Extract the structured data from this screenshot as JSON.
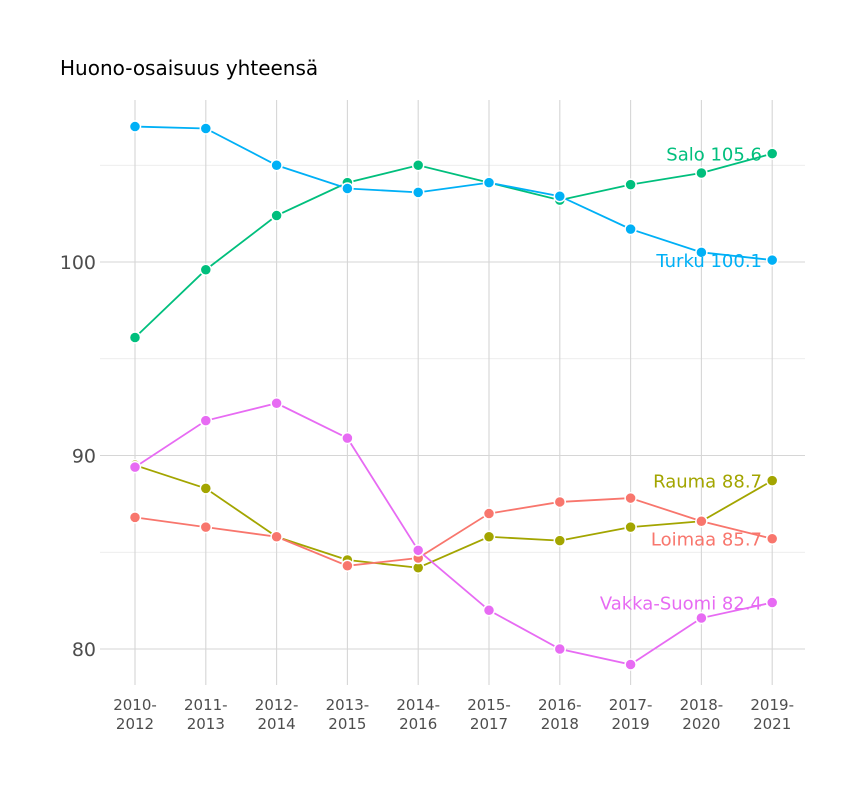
{
  "chart_data": {
    "type": "line",
    "title": "Huono-osaisuus yhteensä",
    "xlabel": "",
    "ylabel": "",
    "categories": [
      "2010-\n2012",
      "2011-\n2013",
      "2012-\n2014",
      "2013-\n2015",
      "2014-\n2016",
      "2015-\n2017",
      "2016-\n2018",
      "2017-\n2019",
      "2018-\n2020",
      "2019-\n2021"
    ],
    "y_ticks": [
      80,
      90,
      100
    ],
    "ylim": [
      78.1,
      108.4
    ],
    "grid": true,
    "legend": "none (end labels)",
    "series": [
      {
        "name": "Salo",
        "end_label": "Salo 105.6",
        "color": "#00BF7D",
        "values": [
          96.1,
          99.6,
          102.4,
          104.1,
          105.0,
          104.1,
          103.2,
          104.0,
          104.6,
          105.6
        ]
      },
      {
        "name": "Turku",
        "end_label": "Turku 100.1",
        "color": "#00B0F6",
        "values": [
          107.0,
          106.9,
          105.0,
          103.8,
          103.6,
          104.1,
          103.4,
          101.7,
          100.5,
          100.1
        ]
      },
      {
        "name": "Rauma",
        "end_label": "Rauma 88.7",
        "color": "#A3A500",
        "values": [
          89.5,
          88.3,
          85.8,
          84.6,
          84.2,
          85.8,
          85.6,
          86.3,
          86.6,
          88.7
        ]
      },
      {
        "name": "Loimaa",
        "end_label": "Loimaa 85.7",
        "color": "#F8766D",
        "values": [
          86.8,
          86.3,
          85.8,
          84.3,
          84.7,
          87.0,
          87.6,
          87.8,
          86.6,
          85.7
        ]
      },
      {
        "name": "Vakka-Suomi",
        "end_label": "Vakka-Suomi 82.4",
        "color": "#E76BF3",
        "values": [
          89.4,
          91.8,
          92.7,
          90.9,
          85.1,
          82.0,
          80.0,
          79.2,
          81.6,
          82.4
        ]
      }
    ]
  }
}
